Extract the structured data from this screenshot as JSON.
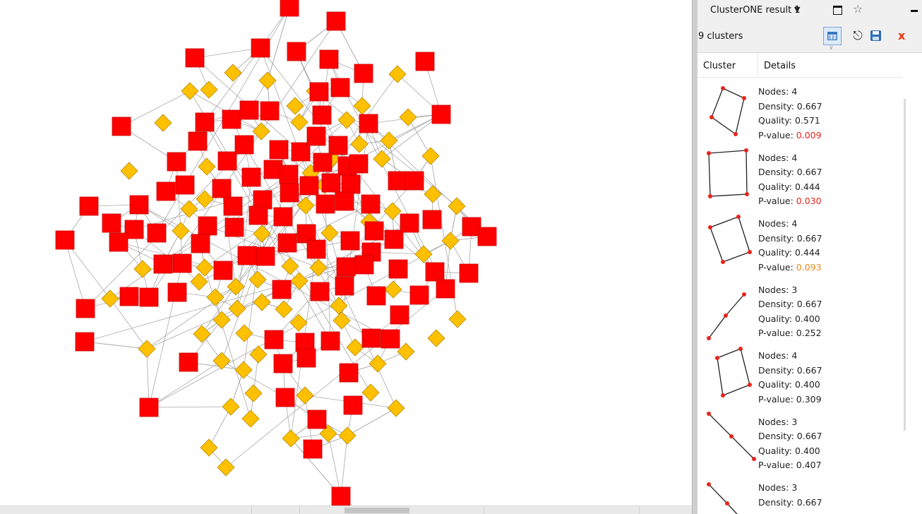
{
  "panel": {
    "title": "ClusterONE result 1",
    "title_caret": "▼",
    "cluster_count": "9 clusters",
    "toolbar": {
      "table_icon": "table-icon",
      "find_icon": "binoculars-icon",
      "save_icon": "save-icon",
      "close_icon": "close-icon",
      "close_glyph": "x"
    },
    "columns": {
      "cluster": "Cluster",
      "details": "Details"
    },
    "clusters": [
      {
        "nodes": "Nodes: 4",
        "density": "Density: 0.667",
        "quality": "Quality: 0.571",
        "pvalue_label": "P-value: ",
        "pvalue": "0.009",
        "pvalue_color": "#e8231a"
      },
      {
        "nodes": "Nodes: 4",
        "density": "Density: 0.667",
        "quality": "Quality: 0.444",
        "pvalue_label": "P-value: ",
        "pvalue": "0.030",
        "pvalue_color": "#e8231a"
      },
      {
        "nodes": "Nodes: 4",
        "density": "Density: 0.667",
        "quality": "Quality: 0.444",
        "pvalue_label": "P-value: ",
        "pvalue": "0.093",
        "pvalue_color": "#f08a1a"
      },
      {
        "nodes": "Nodes: 3",
        "density": "Density: 0.667",
        "quality": "Quality: 0.400",
        "pvalue_label": "P-value: ",
        "pvalue": "0.252",
        "pvalue_color": "#222222"
      },
      {
        "nodes": "Nodes: 4",
        "density": "Density: 0.667",
        "quality": "Quality: 0.400",
        "pvalue_label": "P-value: ",
        "pvalue": "0.309",
        "pvalue_color": "#222222"
      },
      {
        "nodes": "Nodes: 3",
        "density": "Density: 0.667",
        "quality": "Quality: 0.400",
        "pvalue_label": "P-value: ",
        "pvalue": "0.407",
        "pvalue_color": "#222222"
      },
      {
        "nodes": "Nodes: 3",
        "density": "Density: 0.667",
        "quality": "",
        "pvalue_label": "",
        "pvalue": "",
        "pvalue_color": "#222222"
      }
    ]
  },
  "network": {
    "node_colors": {
      "square": "#ff0000",
      "diamond": "#ffc000"
    },
    "edge_color": "#a8a8a8"
  },
  "colors": {
    "panel_bg": "#f0f0f0",
    "selection": "#dceafa"
  }
}
